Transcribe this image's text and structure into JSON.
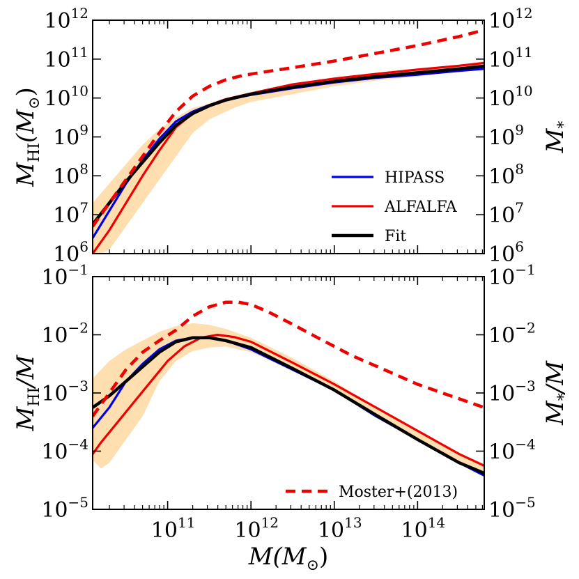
{
  "chart_data": [
    {
      "type": "line",
      "panel": "top",
      "xscale": "log",
      "yscale": "log",
      "xlim": [
        10.1,
        14.8
      ],
      "ylim": [
        6,
        12
      ],
      "ylabel_left": {
        "main": "M",
        "sub": "HI",
        "tail": "(M",
        "odot": "⊙",
        "close": ")"
      },
      "ylabel_right": {
        "main": "M",
        "sub": "*"
      },
      "yticks": [
        {
          "base": "10",
          "exp": "6"
        },
        {
          "base": "10",
          "exp": "7"
        },
        {
          "base": "10",
          "exp": "8"
        },
        {
          "base": "10",
          "exp": "9"
        },
        {
          "base": "10",
          "exp": "10"
        },
        {
          "base": "10",
          "exp": "11"
        },
        {
          "base": "10",
          "exp": "12"
        }
      ],
      "band": {
        "name": "scatter band",
        "color": "#ffdeb0",
        "x": [
          10.1,
          10.3,
          10.5,
          10.7,
          10.9,
          11.1,
          11.3,
          11.5,
          11.8,
          12.0,
          12.5,
          13.0,
          13.5,
          14.0,
          14.5,
          14.8
        ],
        "lower": [
          5.9,
          6.1,
          6.7,
          7.3,
          7.9,
          8.5,
          9.1,
          9.45,
          9.75,
          9.9,
          10.1,
          10.3,
          10.45,
          10.55,
          10.7,
          10.75
        ],
        "upper": [
          7.3,
          7.8,
          8.3,
          8.8,
          9.2,
          9.5,
          9.75,
          9.85,
          9.95,
          10.05,
          10.3,
          10.45,
          10.6,
          10.75,
          10.85,
          10.95
        ]
      },
      "series": [
        {
          "name": "HIPASS",
          "color": "#0000ee",
          "width": 3.2,
          "dash": "",
          "x": [
            10.1,
            10.3,
            10.5,
            10.7,
            10.9,
            11.1,
            11.3,
            11.5,
            11.7,
            12.0,
            12.5,
            13.0,
            13.5,
            14.0,
            14.5,
            14.8
          ],
          "y": [
            6.4,
            7.1,
            7.8,
            8.4,
            8.95,
            9.4,
            9.65,
            9.82,
            9.95,
            10.08,
            10.25,
            10.4,
            10.52,
            10.6,
            10.7,
            10.75
          ]
        },
        {
          "name": "ALFALFA",
          "color": "#ee0000",
          "width": 3.2,
          "dash": "",
          "x": [
            10.1,
            10.3,
            10.5,
            10.7,
            10.9,
            11.1,
            11.3,
            11.5,
            11.7,
            12.0,
            12.5,
            13.0,
            13.5,
            14.0,
            14.5,
            14.8
          ],
          "y": [
            6.0,
            6.6,
            7.3,
            8.0,
            8.65,
            9.25,
            9.6,
            9.82,
            9.97,
            10.12,
            10.35,
            10.5,
            10.62,
            10.73,
            10.83,
            10.9
          ]
        },
        {
          "name": "Fit",
          "color": "#000000",
          "width": 4.5,
          "dash": "",
          "x": [
            10.1,
            10.3,
            10.5,
            10.7,
            10.9,
            11.1,
            11.3,
            11.5,
            11.7,
            12.0,
            12.5,
            13.0,
            13.5,
            14.0,
            14.5,
            14.8
          ],
          "y": [
            6.75,
            7.3,
            7.85,
            8.35,
            8.85,
            9.3,
            9.6,
            9.8,
            9.95,
            10.1,
            10.28,
            10.43,
            10.55,
            10.65,
            10.75,
            10.82
          ]
        },
        {
          "name": "Moster+(2013)",
          "color": "#ee0000",
          "width": 4.5,
          "dash": "14,9",
          "x": [
            10.1,
            10.3,
            10.5,
            10.7,
            10.9,
            11.1,
            11.3,
            11.5,
            11.7,
            11.9,
            12.1,
            12.5,
            13.0,
            13.5,
            14.0,
            14.5,
            14.8
          ],
          "y": [
            6.7,
            7.3,
            7.9,
            8.5,
            9.1,
            9.65,
            10.05,
            10.3,
            10.47,
            10.58,
            10.65,
            10.78,
            10.95,
            11.15,
            11.35,
            11.58,
            11.75
          ]
        }
      ],
      "legend": {
        "placement": "lower-right",
        "entries": [
          "HIPASS",
          "ALFALFA",
          "Fit"
        ]
      }
    },
    {
      "type": "line",
      "panel": "bottom",
      "xscale": "log",
      "yscale": "log",
      "xlim": [
        10.1,
        14.8
      ],
      "ylim": [
        -5,
        -1
      ],
      "ylabel_left": {
        "main": "M",
        "sub": "HI",
        "tail": "/M"
      },
      "ylabel_right": {
        "main": "M",
        "sub": "*",
        "tail": "/M"
      },
      "xlabel": {
        "main": "M",
        "tail": "(M",
        "odot": "⊙",
        "close": ")"
      },
      "xticks": [
        {
          "value": 11,
          "base": "10",
          "exp": "11"
        },
        {
          "value": 12,
          "base": "10",
          "exp": "12"
        },
        {
          "value": 13,
          "base": "10",
          "exp": "13"
        },
        {
          "value": 14,
          "base": "10",
          "exp": "14"
        }
      ],
      "yticks": [
        {
          "base": "10",
          "exp": "−5"
        },
        {
          "base": "10",
          "exp": "−4"
        },
        {
          "base": "10",
          "exp": "−3"
        },
        {
          "base": "10",
          "exp": "−2"
        },
        {
          "base": "10",
          "exp": "−1"
        }
      ],
      "band": {
        "name": "scatter band",
        "color": "#ffdeb0",
        "x": [
          10.1,
          10.2,
          10.3,
          10.5,
          10.7,
          10.9,
          11.1,
          11.3,
          11.5,
          11.7,
          12.0,
          12.5,
          13.0,
          13.5,
          14.0,
          14.5,
          14.8
        ],
        "lower": [
          -4.15,
          -4.3,
          -4.2,
          -3.8,
          -3.4,
          -2.8,
          -2.45,
          -2.28,
          -2.22,
          -2.2,
          -2.3,
          -2.6,
          -2.95,
          -3.4,
          -3.8,
          -4.2,
          -4.35
        ],
        "upper": [
          -2.75,
          -2.6,
          -2.45,
          -2.25,
          -2.1,
          -1.95,
          -1.85,
          -1.8,
          -1.83,
          -1.9,
          -2.05,
          -2.4,
          -2.8,
          -3.25,
          -3.65,
          -4.05,
          -4.25
        ]
      },
      "series": [
        {
          "name": "HIPASS",
          "color": "#0000ee",
          "width": 3.2,
          "dash": "",
          "x": [
            10.1,
            10.3,
            10.5,
            10.7,
            10.9,
            11.1,
            11.3,
            11.5,
            11.7,
            12.0,
            12.5,
            13.0,
            13.5,
            14.0,
            14.5,
            14.8
          ],
          "y": [
            -3.6,
            -3.25,
            -2.8,
            -2.5,
            -2.25,
            -2.1,
            -2.05,
            -2.05,
            -2.1,
            -2.25,
            -2.6,
            -2.95,
            -3.4,
            -3.8,
            -4.2,
            -4.42
          ]
        },
        {
          "name": "ALFALFA",
          "color": "#ee0000",
          "width": 3.2,
          "dash": "",
          "x": [
            10.1,
            10.2,
            10.4,
            10.6,
            10.8,
            11.0,
            11.2,
            11.4,
            11.6,
            11.8,
            12.0,
            12.5,
            13.0,
            13.5,
            14.0,
            14.5,
            14.8
          ],
          "y": [
            -4.05,
            -3.85,
            -3.5,
            -3.15,
            -2.8,
            -2.45,
            -2.2,
            -2.05,
            -2.0,
            -2.04,
            -2.12,
            -2.48,
            -2.85,
            -3.25,
            -3.65,
            -4.05,
            -4.25
          ]
        },
        {
          "name": "Fit",
          "color": "#000000",
          "width": 4.5,
          "dash": "",
          "x": [
            10.1,
            10.3,
            10.5,
            10.7,
            10.9,
            11.1,
            11.3,
            11.5,
            11.7,
            12.0,
            12.5,
            13.0,
            13.5,
            14.0,
            14.5,
            14.8
          ],
          "y": [
            -3.25,
            -3.05,
            -2.8,
            -2.55,
            -2.3,
            -2.12,
            -2.05,
            -2.05,
            -2.1,
            -2.22,
            -2.58,
            -2.95,
            -3.38,
            -3.8,
            -4.2,
            -4.38
          ]
        },
        {
          "name": "Moster+(2013)",
          "color": "#ee0000",
          "width": 4.5,
          "dash": "14,9",
          "x": [
            10.1,
            10.3,
            10.5,
            10.7,
            10.9,
            11.1,
            11.3,
            11.5,
            11.7,
            11.85,
            12.0,
            12.2,
            12.5,
            12.8,
            13.2,
            13.6,
            14.0,
            14.5,
            14.8
          ],
          "y": [
            -3.4,
            -3.0,
            -2.6,
            -2.3,
            -2.1,
            -1.92,
            -1.68,
            -1.52,
            -1.44,
            -1.44,
            -1.48,
            -1.6,
            -1.82,
            -2.05,
            -2.35,
            -2.6,
            -2.85,
            -3.1,
            -3.25
          ]
        }
      ],
      "legend": {
        "placement": "lower-right",
        "entries": [
          "Moster+(2013)"
        ]
      }
    }
  ]
}
